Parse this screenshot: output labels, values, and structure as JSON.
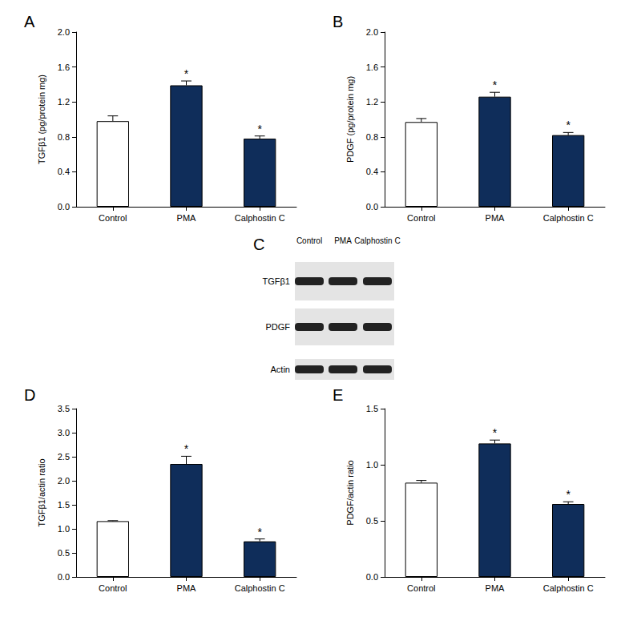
{
  "chart_data": [
    {
      "panel_label": "A",
      "type": "bar",
      "ylabel": "TGFβ1 (pg/protein mg)",
      "categories": [
        "Control",
        "PMA",
        "Calphostin C"
      ],
      "values": [
        0.98,
        1.39,
        0.78
      ],
      "errors": [
        0.06,
        0.05,
        0.03
      ],
      "annotations": [
        null,
        "*",
        "*"
      ],
      "colors": [
        "#ffffff",
        "#0f2d5a",
        "#0f2d5a"
      ],
      "ylim": [
        0,
        2
      ],
      "yticks": [
        {
          "value": 0,
          "label": "0.0"
        },
        0.4,
        0.8,
        1.2,
        1.6,
        {
          "value": 2,
          "label": "2.0"
        }
      ],
      "grid": false
    },
    {
      "panel_label": "B",
      "type": "bar",
      "ylabel": "PDGF (pg/protein mg)",
      "categories": [
        "Control",
        "PMA",
        "Calphostin C"
      ],
      "values": [
        0.97,
        1.26,
        0.82
      ],
      "errors": [
        0.04,
        0.05,
        0.03
      ],
      "annotations": [
        null,
        "*",
        "*"
      ],
      "colors": [
        "#ffffff",
        "#0f2d5a",
        "#0f2d5a"
      ],
      "ylim": [
        0,
        2
      ],
      "yticks": [
        {
          "value": 0,
          "label": "0.0"
        },
        0.4,
        0.8,
        1.2,
        1.6,
        {
          "value": 2,
          "label": "2.0"
        }
      ],
      "grid": false
    },
    {
      "panel_label": "D",
      "type": "bar",
      "ylabel": "TGFβ1/actin ratio",
      "categories": [
        "Control",
        "PMA",
        "Calphostin C"
      ],
      "values": [
        1.16,
        2.35,
        0.74
      ],
      "errors": [
        0.01,
        0.16,
        0.05
      ],
      "annotations": [
        null,
        "*",
        "*"
      ],
      "colors": [
        "#ffffff",
        "#0f2d5a",
        "#0f2d5a"
      ],
      "ylim": [
        0,
        3.5
      ],
      "yticks": [
        {
          "value": 0,
          "label": "0.0"
        },
        0.5,
        {
          "value": 1,
          "label": "1.0"
        },
        1.5,
        {
          "value": 2,
          "label": "2.0"
        },
        2.5,
        {
          "value": 3,
          "label": "3.0"
        },
        3.5
      ],
      "grid": false
    },
    {
      "panel_label": "E",
      "type": "bar",
      "ylabel": "PDGF/actin ratio",
      "categories": [
        "Control",
        "PMA",
        "Calphostin C"
      ],
      "values": [
        0.84,
        1.19,
        0.65
      ],
      "errors": [
        0.02,
        0.03,
        0.02
      ],
      "annotations": [
        null,
        "*",
        "*"
      ],
      "colors": [
        "#ffffff",
        "#0f2d5a",
        "#0f2d5a"
      ],
      "ylim": [
        0,
        1.5
      ],
      "yticks": [
        {
          "value": 0,
          "label": "0.0"
        },
        0.5,
        {
          "value": 1,
          "label": "1.0"
        },
        1.5
      ],
      "grid": false
    }
  ],
  "blot": {
    "panel_label": "C",
    "lanes": [
      "Control",
      "PMA",
      "Calphostin C"
    ],
    "bands": [
      "TGFβ1",
      "PDGF",
      "Actin"
    ]
  }
}
